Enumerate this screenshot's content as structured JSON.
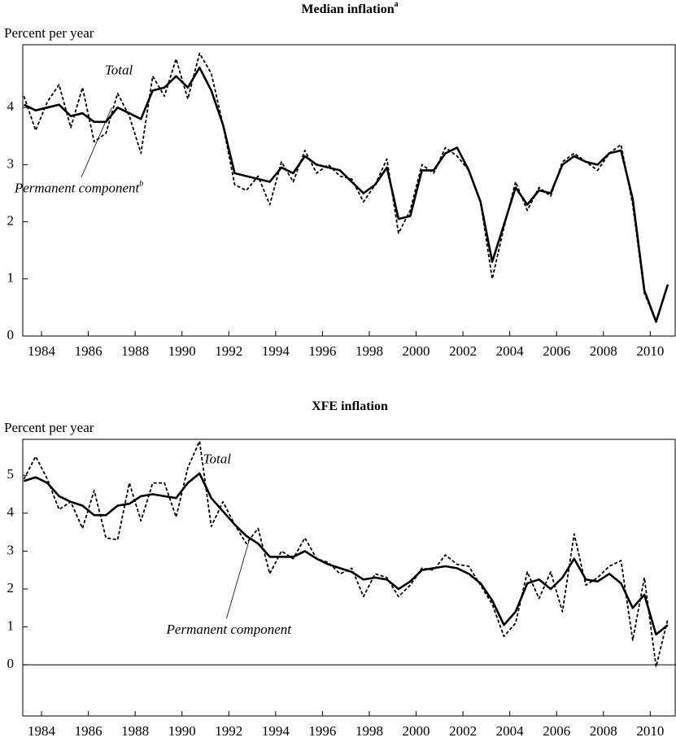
{
  "chart_data": [
    {
      "type": "line",
      "title": "Median inflation",
      "title_superscript": "a",
      "y_label": "Percent per year",
      "x": [
        1983.25,
        1983.75,
        1984.25,
        1984.75,
        1985.25,
        1985.75,
        1986.25,
        1986.75,
        1987.25,
        1987.75,
        1988.25,
        1988.75,
        1989.25,
        1989.75,
        1990.25,
        1990.75,
        1991.25,
        1991.75,
        1992.25,
        1992.75,
        1993.25,
        1993.75,
        1994.25,
        1994.75,
        1995.25,
        1995.75,
        1996.25,
        1996.75,
        1997.25,
        1997.75,
        1998.25,
        1998.75,
        1999.25,
        1999.75,
        2000.25,
        2000.75,
        2001.25,
        2001.75,
        2002.25,
        2002.75,
        2003.25,
        2003.75,
        2004.25,
        2004.75,
        2005.25,
        2005.75,
        2006.25,
        2006.75,
        2007.25,
        2007.75,
        2008.25,
        2008.75,
        2009.25,
        2009.75,
        2010.25,
        2010.75
      ],
      "series": [
        {
          "name": "Total",
          "color": "#000000",
          "style": "dashed",
          "values": [
            4.2,
            3.6,
            4.1,
            4.4,
            3.65,
            4.35,
            3.4,
            3.55,
            4.25,
            3.85,
            3.2,
            4.55,
            4.2,
            4.85,
            4.15,
            4.95,
            4.6,
            3.7,
            2.65,
            2.55,
            2.8,
            2.3,
            3.05,
            2.7,
            3.25,
            2.85,
            3.0,
            2.8,
            2.75,
            2.35,
            2.65,
            3.1,
            1.8,
            2.2,
            3.0,
            2.85,
            3.3,
            3.15,
            2.9,
            2.35,
            1.0,
            1.9,
            2.7,
            2.2,
            2.6,
            2.45,
            3.05,
            3.2,
            3.05,
            2.9,
            3.2,
            3.35,
            2.3,
            0.75,
            0.25,
            0.9
          ]
        },
        {
          "name": "Permanent component",
          "name_superscript": "b",
          "color": "#000000",
          "style": "solid",
          "values": [
            4.05,
            3.95,
            4.0,
            4.05,
            3.85,
            3.9,
            3.75,
            3.75,
            4.0,
            3.9,
            3.8,
            4.3,
            4.35,
            4.55,
            4.35,
            4.7,
            4.3,
            3.7,
            2.85,
            2.8,
            2.75,
            2.7,
            2.95,
            2.85,
            3.15,
            3.0,
            2.95,
            2.9,
            2.7,
            2.5,
            2.65,
            2.95,
            2.05,
            2.1,
            2.9,
            2.9,
            3.2,
            3.3,
            2.9,
            2.35,
            1.3,
            1.95,
            2.6,
            2.3,
            2.55,
            2.5,
            3.0,
            3.15,
            3.05,
            3.0,
            3.2,
            3.25,
            2.4,
            0.8,
            0.25,
            0.9
          ]
        }
      ],
      "xlim": [
        1983.2,
        2011.1
      ],
      "xticks": [
        1984,
        1986,
        1988,
        1990,
        1992,
        1994,
        1996,
        1998,
        2000,
        2002,
        2004,
        2006,
        2008,
        2010
      ],
      "ylim": [
        0,
        5.1
      ],
      "yticks": [
        0,
        1,
        2,
        3,
        4
      ],
      "zero_line": false
    },
    {
      "type": "line",
      "title": "XFE inflation",
      "y_label": "Percent per year",
      "x": [
        1983.25,
        1983.75,
        1984.25,
        1984.75,
        1985.25,
        1985.75,
        1986.25,
        1986.75,
        1987.25,
        1987.75,
        1988.25,
        1988.75,
        1989.25,
        1989.75,
        1990.25,
        1990.75,
        1991.25,
        1991.75,
        1992.25,
        1992.75,
        1993.25,
        1993.75,
        1994.25,
        1994.75,
        1995.25,
        1995.75,
        1996.25,
        1996.75,
        1997.25,
        1997.75,
        1998.25,
        1998.75,
        1999.25,
        1999.75,
        2000.25,
        2000.75,
        2001.25,
        2001.75,
        2002.25,
        2002.75,
        2003.25,
        2003.75,
        2004.25,
        2004.75,
        2005.25,
        2005.75,
        2006.25,
        2006.75,
        2007.25,
        2007.75,
        2008.25,
        2008.75,
        2009.25,
        2009.75,
        2010.25,
        2010.75
      ],
      "series": [
        {
          "name": "Total",
          "color": "#000000",
          "style": "dashed",
          "values": [
            4.9,
            5.5,
            4.9,
            4.1,
            4.3,
            3.6,
            4.6,
            3.35,
            3.3,
            4.8,
            3.8,
            4.8,
            4.8,
            3.9,
            5.2,
            5.9,
            3.65,
            4.3,
            3.7,
            3.2,
            3.6,
            2.4,
            3.0,
            2.8,
            3.35,
            2.8,
            2.7,
            2.4,
            2.55,
            1.8,
            2.4,
            2.3,
            1.8,
            2.1,
            2.55,
            2.5,
            2.9,
            2.65,
            2.6,
            2.1,
            1.6,
            0.75,
            1.1,
            2.45,
            1.75,
            2.45,
            1.4,
            3.45,
            2.1,
            2.3,
            2.6,
            2.75,
            0.65,
            2.3,
            -0.05,
            1.2
          ]
        },
        {
          "name": "Permanent component",
          "color": "#000000",
          "style": "solid",
          "values": [
            4.85,
            4.95,
            4.8,
            4.45,
            4.3,
            4.2,
            3.95,
            3.95,
            4.2,
            4.25,
            4.45,
            4.5,
            4.45,
            4.4,
            4.8,
            5.05,
            4.4,
            4.05,
            3.7,
            3.4,
            3.2,
            2.85,
            2.85,
            2.85,
            3.0,
            2.8,
            2.65,
            2.55,
            2.45,
            2.25,
            2.3,
            2.25,
            2.0,
            2.2,
            2.5,
            2.55,
            2.6,
            2.55,
            2.4,
            2.15,
            1.7,
            1.05,
            1.4,
            2.15,
            2.25,
            2.0,
            2.3,
            2.8,
            2.25,
            2.2,
            2.4,
            2.15,
            1.5,
            1.85,
            0.8,
            1.05
          ]
        }
      ],
      "xlim": [
        1983.2,
        2011.1
      ],
      "xticks": [
        1984,
        1986,
        1988,
        1990,
        1992,
        1994,
        1996,
        1998,
        2000,
        2002,
        2004,
        2006,
        2008,
        2010
      ],
      "ylim": [
        -1.35,
        5.95
      ],
      "yticks": [
        0,
        1,
        2,
        3,
        4,
        5
      ],
      "zero_line": true
    }
  ]
}
